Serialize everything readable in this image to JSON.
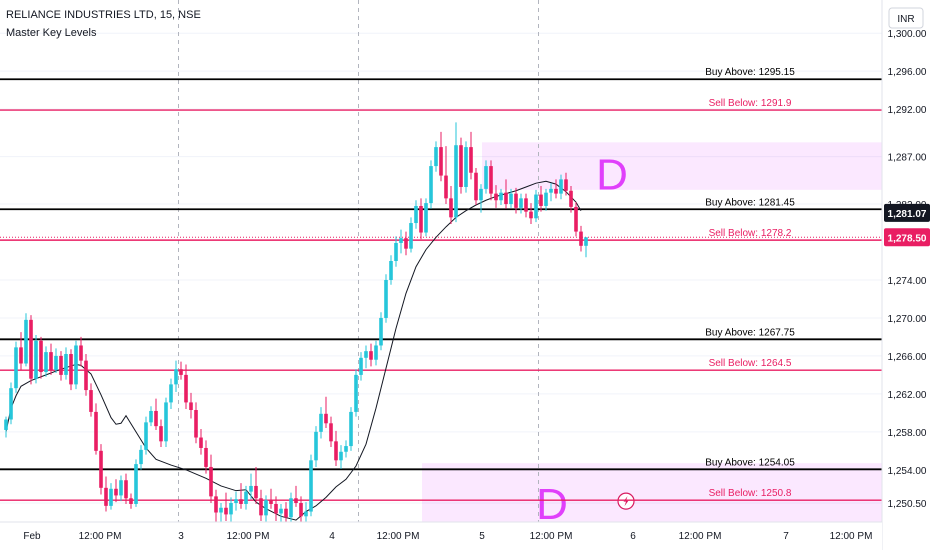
{
  "header": {
    "symbol": "RELIANCE INDUSTRIES LTD, 15, NSE",
    "indicator": "Master Key Levels"
  },
  "chart_data": {
    "type": "candlestick",
    "currency": "INR",
    "ylim": [
      1248.5,
      1303.5
    ],
    "y_ticks": [
      {
        "value": 1300,
        "label": "1,300.00"
      },
      {
        "value": 1296,
        "label": "1,296.00"
      },
      {
        "value": 1292,
        "label": "1,292.00"
      },
      {
        "value": 1287,
        "label": "1,287.00"
      },
      {
        "value": 1282,
        "label": "1,282.00"
      },
      {
        "value": 1274,
        "label": "1,274.00"
      },
      {
        "value": 1270,
        "label": "1,270.00"
      },
      {
        "value": 1266,
        "label": "1,266.00"
      },
      {
        "value": 1262,
        "label": "1,262.00"
      },
      {
        "value": 1258,
        "label": "1,258.00"
      },
      {
        "value": 1254,
        "label": "1,254.00"
      },
      {
        "value": 1250.5,
        "label": "1,250.50"
      }
    ],
    "x_ticks": [
      "Feb",
      "12:00 PM",
      "3",
      "12:00 PM",
      "4",
      "12:00 PM",
      "5",
      "12:00 PM",
      "6",
      "12:00 PM",
      "7",
      "12:00 PM"
    ],
    "session_separators": [
      0,
      6,
      12,
      18
    ],
    "price_badges": [
      {
        "value": 1281.07,
        "label": "1,281.07",
        "color": "#131722"
      },
      {
        "value": 1278.5,
        "label": "1,278.50",
        "color": "#e91e63"
      }
    ],
    "levels": [
      {
        "label": "Buy Above: 1295.15",
        "value": 1295.15,
        "color": "#000000"
      },
      {
        "label": "Sell Below: 1291.9",
        "value": 1291.9,
        "color": "#e91e63"
      },
      {
        "label": "Buy Above: 1281.45",
        "value": 1281.45,
        "color": "#000000"
      },
      {
        "label": "Sell Below: 1278.2",
        "value": 1278.2,
        "color": "#e91e63"
      },
      {
        "label": "Buy Above: 1267.75",
        "value": 1267.75,
        "color": "#000000"
      },
      {
        "label": "Sell Below: 1264.5",
        "value": 1264.5,
        "color": "#e91e63"
      },
      {
        "label": "Buy Above: 1254.05",
        "value": 1254.05,
        "color": "#000000"
      },
      {
        "label": "Sell Below: 1250.8",
        "value": 1250.8,
        "color": "#e91e63"
      }
    ],
    "zones": [
      {
        "label": "D",
        "from_bar": 16,
        "y_low": 1283.5,
        "y_high": 1288.5
      },
      {
        "label": "D",
        "from_bar": 14,
        "y_low": 1248.5,
        "y_high": 1254.7
      }
    ],
    "candles": [
      [
        1258.2,
        1259.6,
        1257.4,
        1259.3
      ],
      [
        1259.3,
        1263.2,
        1258.8,
        1262.6
      ],
      [
        1262.6,
        1267.5,
        1262.1,
        1266.9
      ],
      [
        1266.9,
        1268.5,
        1264.5,
        1265.2
      ],
      [
        1265.2,
        1270.5,
        1264.9,
        1269.8
      ],
      [
        1269.8,
        1270.3,
        1263.0,
        1263.6
      ],
      [
        1263.6,
        1268.2,
        1263.1,
        1267.6
      ],
      [
        1267.6,
        1268.0,
        1263.6,
        1264.3
      ],
      [
        1264.3,
        1267.0,
        1263.8,
        1266.4
      ],
      [
        1266.4,
        1267.3,
        1264.0,
        1264.5
      ],
      [
        1264.5,
        1266.8,
        1264.2,
        1266.0
      ],
      [
        1266.0,
        1266.5,
        1263.4,
        1264.0
      ],
      [
        1264.0,
        1266.9,
        1263.5,
        1266.2
      ],
      [
        1266.2,
        1266.7,
        1262.4,
        1263.0
      ],
      [
        1263.0,
        1267.6,
        1262.5,
        1267.1
      ],
      [
        1267.1,
        1268.0,
        1264.9,
        1265.5
      ],
      [
        1265.5,
        1266.2,
        1261.8,
        1262.4
      ],
      [
        1262.4,
        1263.1,
        1259.6,
        1260.1
      ],
      [
        1260.1,
        1261.0,
        1255.6,
        1256.0
      ],
      [
        1256.0,
        1256.7,
        1251.4,
        1252.1
      ],
      [
        1252.1,
        1253.3,
        1249.6,
        1250.2
      ],
      [
        1250.2,
        1252.6,
        1249.8,
        1252.0
      ],
      [
        1252.0,
        1253.0,
        1250.6,
        1251.3
      ],
      [
        1251.3,
        1253.4,
        1250.7,
        1252.9
      ],
      [
        1252.9,
        1253.6,
        1250.4,
        1251.0
      ],
      [
        1251.0,
        1251.5,
        1249.9,
        1250.4
      ],
      [
        1250.4,
        1255.1,
        1250.1,
        1254.6
      ],
      [
        1254.6,
        1256.6,
        1254.0,
        1256.1
      ],
      [
        1256.1,
        1259.6,
        1255.6,
        1259.0
      ],
      [
        1259.0,
        1260.7,
        1258.6,
        1260.2
      ],
      [
        1260.2,
        1261.5,
        1258.2,
        1258.6
      ],
      [
        1258.6,
        1259.3,
        1256.4,
        1257.0
      ],
      [
        1257.0,
        1261.6,
        1256.4,
        1261.1
      ],
      [
        1261.1,
        1263.6,
        1260.4,
        1263.0
      ],
      [
        1263.0,
        1265.5,
        1262.2,
        1264.6
      ],
      [
        1264.6,
        1265.4,
        1263.5,
        1264.0
      ],
      [
        1264.0,
        1265.1,
        1260.4,
        1261.1
      ],
      [
        1261.1,
        1262.1,
        1259.4,
        1260.3
      ],
      [
        1260.3,
        1261.1,
        1256.8,
        1257.4
      ],
      [
        1257.4,
        1258.3,
        1255.6,
        1256.3
      ],
      [
        1256.3,
        1257.1,
        1253.6,
        1254.3
      ],
      [
        1254.3,
        1255.6,
        1250.5,
        1251.2
      ],
      [
        1251.2,
        1251.9,
        1248.5,
        1249.5
      ],
      [
        1249.5,
        1250.5,
        1248.5,
        1250.0
      ],
      [
        1250.0,
        1251.6,
        1248.6,
        1249.3
      ],
      [
        1249.3,
        1251.1,
        1248.5,
        1250.5
      ],
      [
        1250.5,
        1251.7,
        1249.7,
        1250.9
      ],
      [
        1250.9,
        1252.6,
        1249.9,
        1250.4
      ],
      [
        1250.4,
        1252.3,
        1249.8,
        1251.7
      ],
      [
        1251.7,
        1253.6,
        1250.9,
        1252.3
      ],
      [
        1252.3,
        1254.3,
        1250.4,
        1251.0
      ],
      [
        1251.0,
        1251.9,
        1248.6,
        1249.2
      ],
      [
        1249.2,
        1251.3,
        1248.5,
        1250.8
      ],
      [
        1250.8,
        1252.0,
        1249.9,
        1250.4
      ],
      [
        1250.4,
        1251.2,
        1248.6,
        1249.4
      ],
      [
        1249.4,
        1250.4,
        1248.5,
        1249.9
      ],
      [
        1249.9,
        1250.6,
        1248.5,
        1249.0
      ],
      [
        1249.0,
        1251.6,
        1248.5,
        1251.0
      ],
      [
        1251.0,
        1252.3,
        1250.1,
        1250.5
      ],
      [
        1250.5,
        1251.2,
        1248.5,
        1249.1
      ],
      [
        1249.1,
        1250.6,
        1248.5,
        1249.6
      ],
      [
        1249.6,
        1255.6,
        1249.1,
        1255.0
      ],
      [
        1255.0,
        1258.6,
        1254.3,
        1258.0
      ],
      [
        1258.0,
        1260.6,
        1257.3,
        1259.9
      ],
      [
        1259.9,
        1261.7,
        1258.4,
        1258.9
      ],
      [
        1258.9,
        1259.6,
        1256.4,
        1257.0
      ],
      [
        1257.0,
        1258.1,
        1254.4,
        1255.0
      ],
      [
        1255.0,
        1256.6,
        1254.1,
        1255.9
      ],
      [
        1255.9,
        1257.1,
        1255.3,
        1256.5
      ],
      [
        1256.5,
        1260.6,
        1256.0,
        1260.1
      ],
      [
        1260.1,
        1264.6,
        1259.6,
        1264.0
      ],
      [
        1264.0,
        1266.4,
        1263.4,
        1265.8
      ],
      [
        1265.8,
        1267.1,
        1264.7,
        1266.5
      ],
      [
        1266.5,
        1267.3,
        1264.9,
        1265.6
      ],
      [
        1265.6,
        1267.6,
        1265.0,
        1267.1
      ],
      [
        1267.1,
        1270.6,
        1266.6,
        1270.0
      ],
      [
        1270.0,
        1274.6,
        1269.5,
        1274.0
      ],
      [
        1274.0,
        1276.6,
        1273.5,
        1276.0
      ],
      [
        1276.0,
        1278.6,
        1275.4,
        1277.9
      ],
      [
        1277.9,
        1279.3,
        1276.8,
        1278.4
      ],
      [
        1278.4,
        1279.1,
        1276.6,
        1277.3
      ],
      [
        1277.3,
        1280.6,
        1276.9,
        1280.0
      ],
      [
        1280.0,
        1282.4,
        1279.4,
        1281.8
      ],
      [
        1281.8,
        1282.6,
        1278.3,
        1279.0
      ],
      [
        1279.0,
        1282.6,
        1278.6,
        1282.1
      ],
      [
        1282.1,
        1286.6,
        1281.5,
        1286.0
      ],
      [
        1286.0,
        1288.6,
        1285.4,
        1288.0
      ],
      [
        1288.0,
        1289.6,
        1284.4,
        1285.0
      ],
      [
        1285.0,
        1288.1,
        1282.0,
        1282.6
      ],
      [
        1282.6,
        1283.9,
        1279.9,
        1280.6
      ],
      [
        1280.6,
        1290.6,
        1280.1,
        1288.2
      ],
      [
        1288.2,
        1289.0,
        1283.1,
        1283.8
      ],
      [
        1283.8,
        1288.6,
        1283.2,
        1288.0
      ],
      [
        1288.0,
        1289.6,
        1284.6,
        1285.3
      ],
      [
        1285.3,
        1285.8,
        1281.9,
        1282.4
      ],
      [
        1282.4,
        1284.1,
        1281.1,
        1283.6
      ],
      [
        1283.6,
        1286.6,
        1283.1,
        1286.0
      ],
      [
        1286.0,
        1286.6,
        1282.4,
        1283.1
      ],
      [
        1283.1,
        1284.0,
        1281.6,
        1282.4
      ],
      [
        1282.4,
        1283.6,
        1281.9,
        1283.2
      ],
      [
        1283.2,
        1284.6,
        1281.5,
        1282.0
      ],
      [
        1282.0,
        1283.6,
        1281.6,
        1283.1
      ],
      [
        1283.1,
        1283.7,
        1281.0,
        1281.6
      ],
      [
        1281.6,
        1283.1,
        1281.0,
        1282.6
      ],
      [
        1282.6,
        1283.1,
        1280.6,
        1281.2
      ],
      [
        1281.2,
        1282.1,
        1279.9,
        1280.5
      ],
      [
        1280.5,
        1283.5,
        1280.1,
        1283.0
      ],
      [
        1283.0,
        1283.9,
        1281.2,
        1281.8
      ],
      [
        1281.8,
        1283.6,
        1281.3,
        1283.2
      ],
      [
        1283.2,
        1284.2,
        1282.3,
        1283.6
      ],
      [
        1283.6,
        1284.6,
        1282.6,
        1283.1
      ],
      [
        1283.1,
        1285.1,
        1282.5,
        1284.6
      ],
      [
        1284.6,
        1285.3,
        1282.9,
        1283.4
      ],
      [
        1283.4,
        1283.9,
        1281.1,
        1281.7
      ],
      [
        1281.7,
        1282.2,
        1278.6,
        1279.1
      ],
      [
        1279.1,
        1279.7,
        1277.0,
        1277.6
      ],
      [
        1277.6,
        1278.1,
        1276.4,
        1278.5
      ]
    ],
    "moving_average": [
      [
        0,
        1258.0
      ],
      [
        1,
        1260.5
      ],
      [
        2,
        1261.8
      ],
      [
        3,
        1262.8
      ],
      [
        5,
        1263.4
      ],
      [
        8,
        1264.0
      ],
      [
        11,
        1264.6
      ],
      [
        14,
        1265.1
      ],
      [
        15,
        1265.0
      ],
      [
        17,
        1264.1
      ],
      [
        19,
        1261.9
      ],
      [
        21,
        1259.5
      ],
      [
        22,
        1258.8
      ],
      [
        23,
        1258.9
      ],
      [
        24,
        1259.7
      ],
      [
        26,
        1258.0
      ],
      [
        28,
        1256.3
      ],
      [
        30,
        1255.1
      ],
      [
        33,
        1254.5
      ],
      [
        36,
        1254.0
      ],
      [
        40,
        1253.1
      ],
      [
        43,
        1252.3
      ],
      [
        46,
        1251.8
      ],
      [
        48,
        1251.9
      ],
      [
        50,
        1250.6
      ],
      [
        52,
        1249.9
      ],
      [
        55,
        1249.1
      ],
      [
        58,
        1248.7
      ],
      [
        60,
        1249.6
      ],
      [
        62,
        1250.2
      ],
      [
        64,
        1251.1
      ],
      [
        66,
        1252.2
      ],
      [
        68,
        1253.0
      ],
      [
        70,
        1254.4
      ],
      [
        72,
        1256.7
      ],
      [
        74,
        1260.5
      ],
      [
        76,
        1264.7
      ],
      [
        78,
        1268.9
      ],
      [
        80,
        1272.6
      ],
      [
        82,
        1275.4
      ],
      [
        84,
        1277.2
      ],
      [
        86,
        1278.5
      ],
      [
        88,
        1279.6
      ],
      [
        90,
        1280.6
      ],
      [
        92,
        1281.3
      ],
      [
        94,
        1281.9
      ],
      [
        96,
        1282.4
      ],
      [
        98,
        1282.8
      ],
      [
        100,
        1283.1
      ],
      [
        102,
        1283.4
      ],
      [
        104,
        1283.8
      ],
      [
        106,
        1284.2
      ],
      [
        108,
        1284.4
      ],
      [
        110,
        1284.1
      ],
      [
        112,
        1283.3
      ],
      [
        114,
        1282.2
      ],
      [
        115,
        1281.3
      ]
    ]
  }
}
